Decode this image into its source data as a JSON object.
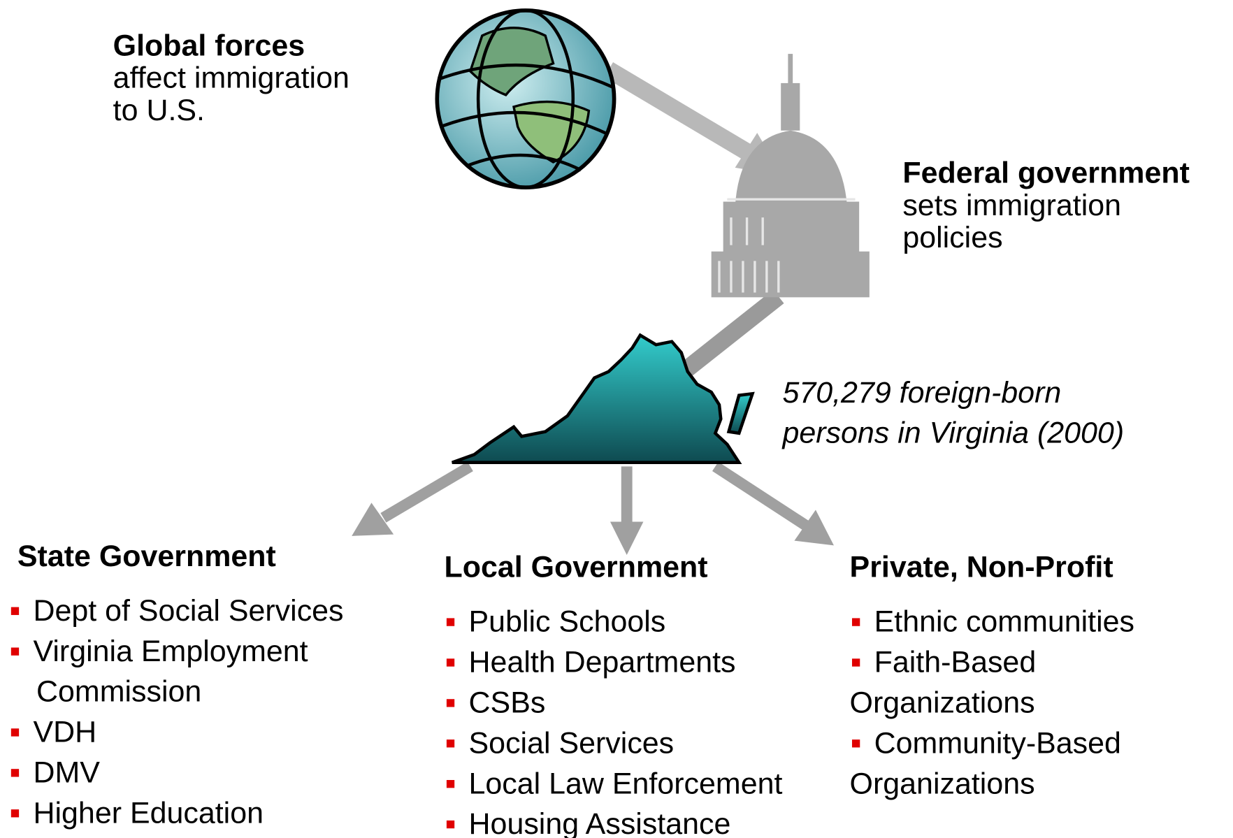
{
  "global": {
    "title": "Global forces",
    "lines": [
      "affect immigration",
      "to U.S."
    ]
  },
  "federal": {
    "title": "Federal government",
    "lines": [
      "sets immigration",
      "policies"
    ]
  },
  "virginia": {
    "lines": [
      "570,279 foreign-born",
      "persons in Virginia (2000)"
    ]
  },
  "columns": [
    {
      "title": "State Government",
      "items": [
        [
          "Dept of Social Services"
        ],
        [
          "Virginia Employment",
          "Commission"
        ],
        [
          "VDH"
        ],
        [
          "DMV"
        ],
        [
          "Higher Education"
        ]
      ]
    },
    {
      "title": "Local Government",
      "items": [
        [
          "Public Schools"
        ],
        [
          "Health Departments"
        ],
        [
          "CSBs"
        ],
        [
          "Social Services"
        ],
        [
          "Local Law Enforcement"
        ],
        [
          "Housing Assistance"
        ]
      ]
    },
    {
      "title": "Private, Non-Profit",
      "items": [
        [
          "Ethnic communities"
        ],
        [
          "Faith-Based",
          "Organizations"
        ],
        [
          "Community-Based",
          "Organizations"
        ]
      ]
    }
  ]
}
